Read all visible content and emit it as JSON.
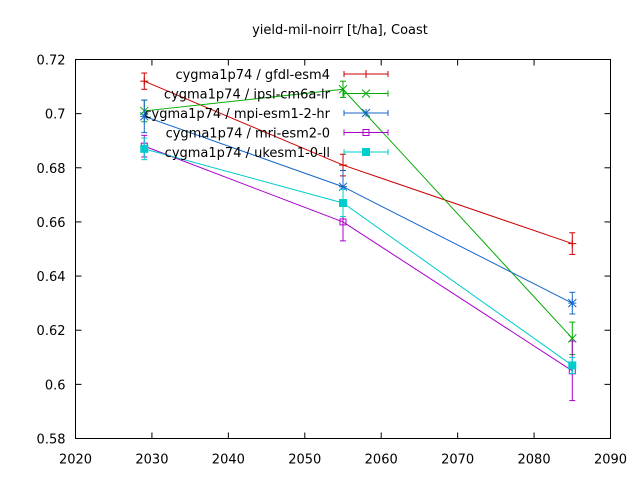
{
  "chart_data": {
    "type": "line",
    "title": "yield-mil-noirr [t/ha], Coast",
    "xlabel": "",
    "ylabel": "",
    "xlim": [
      2020,
      2090
    ],
    "ylim": [
      0.58,
      0.72
    ],
    "xticks": [
      2020,
      2030,
      2040,
      2050,
      2060,
      2070,
      2080,
      2090
    ],
    "yticks": [
      0.58,
      0.6,
      0.62,
      0.64,
      0.66,
      0.68,
      0.7,
      0.72
    ],
    "ytick_labels": [
      "0.58",
      "0.6",
      "0.62",
      "0.64",
      "0.66",
      "0.68",
      "0.7",
      "0.72"
    ],
    "grid": false,
    "legend_position": "top-right",
    "series": [
      {
        "name": "cygma1p74 / gfdl-esm4",
        "color": "#cc0000",
        "marker": "plus",
        "points": [
          {
            "x": 2029,
            "y": 0.712,
            "err": 0.003
          },
          {
            "x": 2055,
            "y": 0.681,
            "err": 0.004
          },
          {
            "x": 2085,
            "y": 0.652,
            "err": 0.004
          }
        ]
      },
      {
        "name": "cygma1p74 / ipsl-cm6a-lr",
        "color": "#00aa00",
        "marker": "cross",
        "points": [
          {
            "x": 2029,
            "y": 0.701,
            "err": 0.004
          },
          {
            "x": 2055,
            "y": 0.709,
            "err": 0.003
          },
          {
            "x": 2085,
            "y": 0.617,
            "err": 0.006
          }
        ]
      },
      {
        "name": "cygma1p74 / mpi-esm1-2-hr",
        "color": "#1466c8",
        "marker": "star",
        "points": [
          {
            "x": 2029,
            "y": 0.699,
            "err": 0.006
          },
          {
            "x": 2055,
            "y": 0.673,
            "err": 0.006
          },
          {
            "x": 2085,
            "y": 0.63,
            "err": 0.004
          }
        ]
      },
      {
        "name": "cygma1p74 / mri-esm2-0",
        "color": "#aa00cc",
        "marker": "square-open",
        "points": [
          {
            "x": 2029,
            "y": 0.688,
            "err": 0.004
          },
          {
            "x": 2055,
            "y": 0.66,
            "err": 0.007
          },
          {
            "x": 2085,
            "y": 0.605,
            "err": 0.011
          }
        ]
      },
      {
        "name": "cygma1p74 / ukesm1-0-ll",
        "color": "#00cccc",
        "marker": "square-filled",
        "points": [
          {
            "x": 2029,
            "y": 0.687,
            "err": 0.004
          },
          {
            "x": 2055,
            "y": 0.667,
            "err": 0.005
          },
          {
            "x": 2085,
            "y": 0.607,
            "err": 0.003
          }
        ]
      }
    ]
  }
}
